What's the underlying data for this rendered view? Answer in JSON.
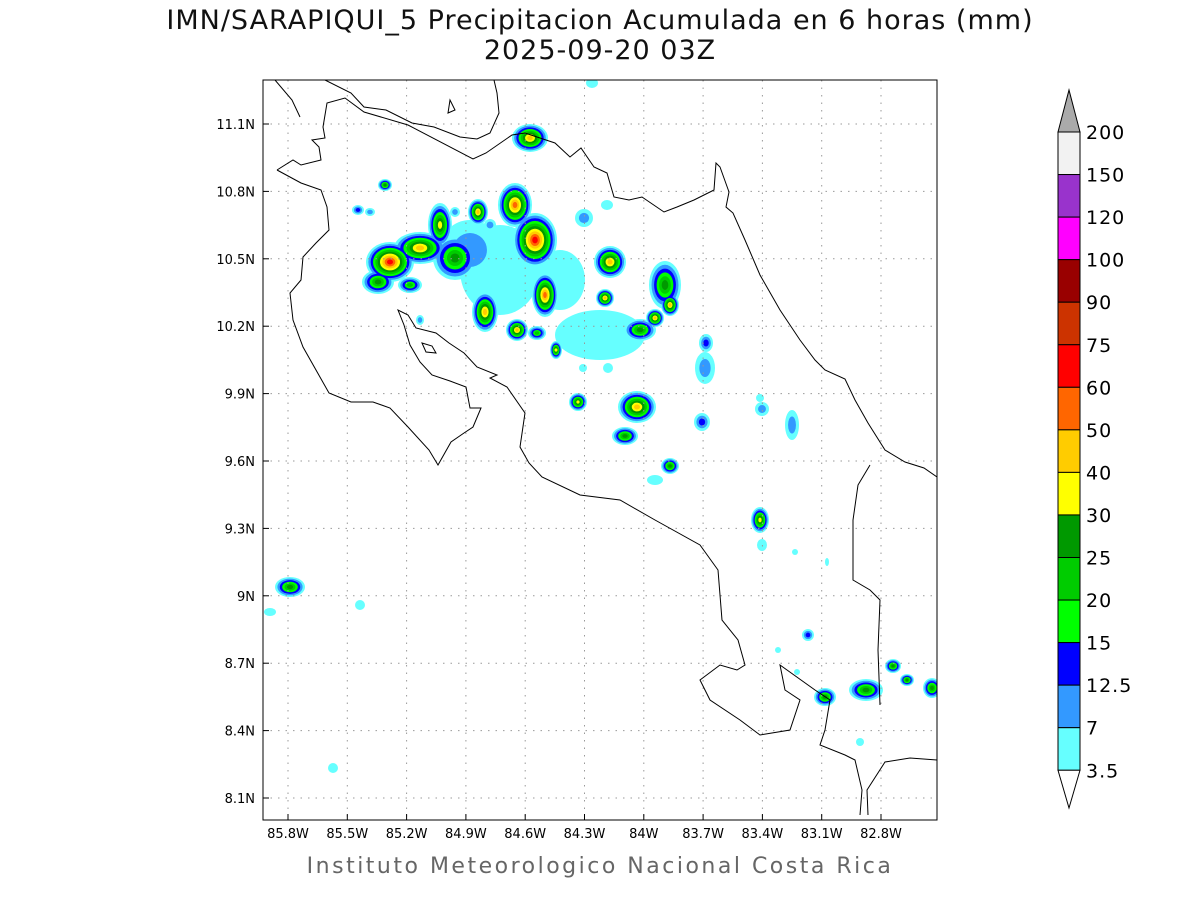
{
  "title": {
    "line1": "IMN/SARAPIQUI_5 Precipitacion Acumulada en 6 horas (mm)",
    "line2": "2025-09-20 03Z"
  },
  "footer": "Instituto Meteorologico Nacional Costa Rica",
  "map": {
    "region": "Costa Rica",
    "variable": "6-hour accumulated precipitation (mm)",
    "lon_range": [
      -85.93,
      -82.52
    ],
    "lat_range": [
      8.0,
      11.3
    ],
    "lat_ticks": [
      "11.1N",
      "10.8N",
      "10.5N",
      "10.2N",
      "9.9N",
      "9.6N",
      "9.3N",
      "9N",
      "8.7N",
      "8.4N",
      "8.1N"
    ],
    "lon_ticks": [
      "85.8W",
      "85.5W",
      "85.2W",
      "84.9W",
      "84.6W",
      "84.3W",
      "84W",
      "83.7W",
      "83.4W",
      "83.1W",
      "82.8W"
    ],
    "grid": true
  },
  "colorbar": {
    "labels": [
      "200",
      "150",
      "120",
      "100",
      "90",
      "75",
      "60",
      "50",
      "40",
      "30",
      "25",
      "20",
      "15",
      "12.5",
      "7",
      "3.5"
    ],
    "over_color": "#aaaaaa",
    "under_color": "#ffffff",
    "colors": [
      "#f2f2f2",
      "#9933cc",
      "#ff00ff",
      "#990000",
      "#cc3300",
      "#ff0000",
      "#ff6600",
      "#ffcc00",
      "#ffff00",
      "#009900",
      "#00cc00",
      "#00ff00",
      "#0000ff",
      "#3399ff",
      "#66ffff"
    ]
  }
}
